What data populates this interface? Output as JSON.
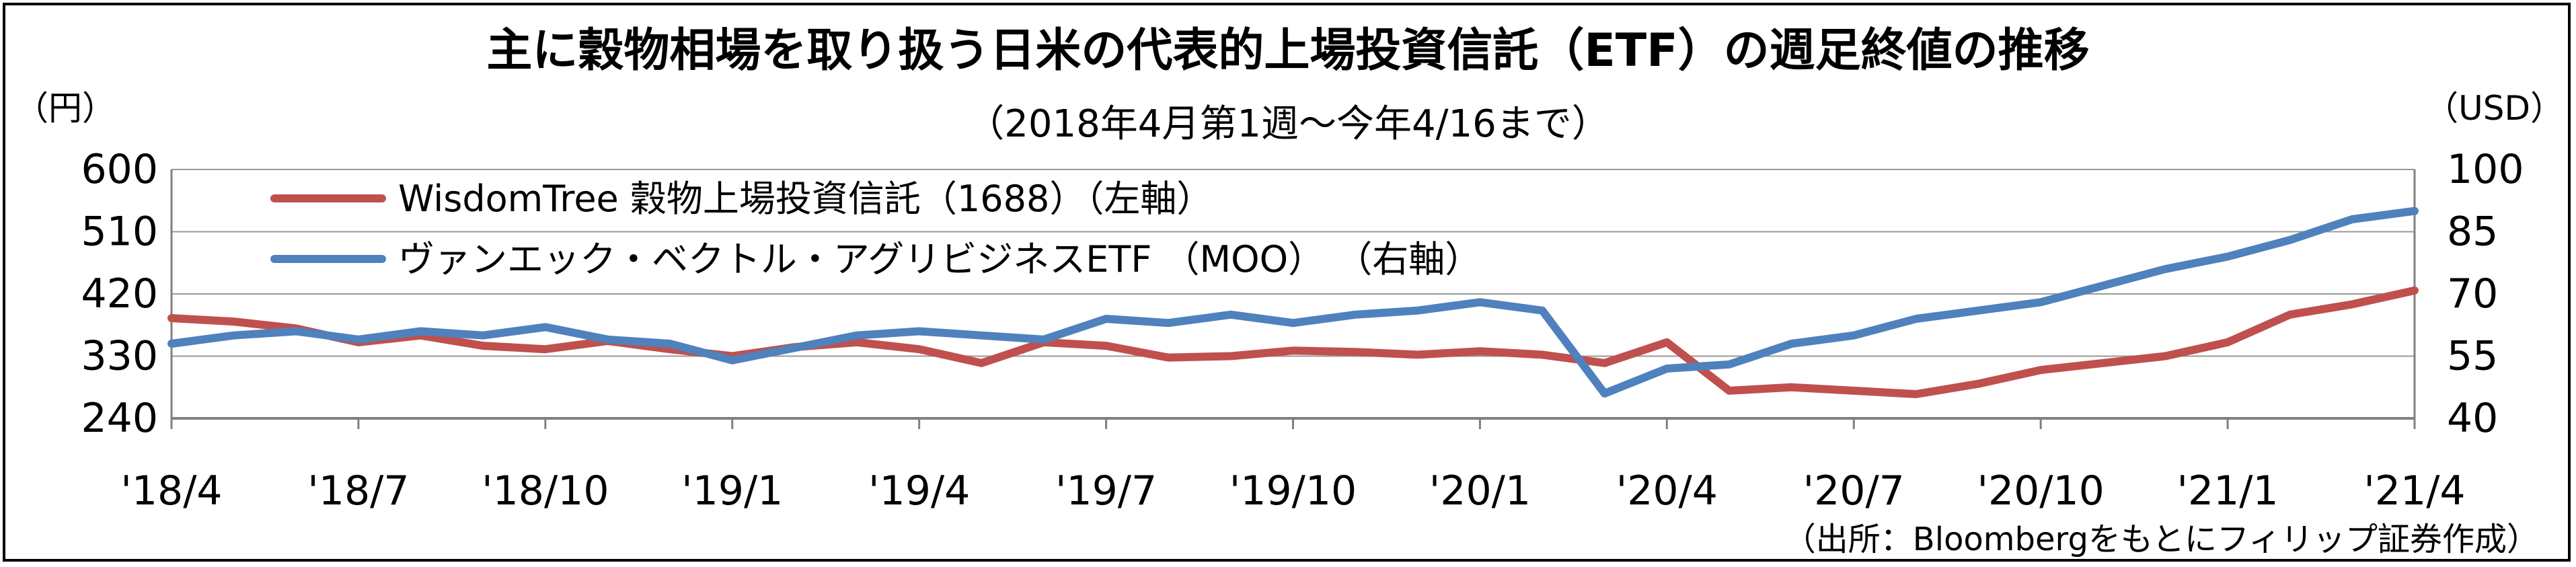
{
  "chart_data": {
    "type": "line",
    "title": "主に穀物相場を取り扱う日米の代表的上場投資信託（ETF）の週足終値の推移",
    "subtitle": "（2018年4月第1週～今年4/16まで）",
    "left_unit": "（円）",
    "right_unit": "（USD）",
    "source": "（出所：Bloombergをもとにフィリップ証券作成）",
    "x_ticks": [
      "'18/4",
      "'18/7",
      "'18/10",
      "'19/1",
      "'19/4",
      "'19/7",
      "'19/10",
      "'20/1",
      "'20/4",
      "'20/7",
      "'20/10",
      "'21/1",
      "'21/4"
    ],
    "y_left": {
      "ticks": [
        "600",
        "510",
        "420",
        "330",
        "240"
      ],
      "ylim": [
        240,
        600
      ]
    },
    "y_right": {
      "ticks": [
        "100",
        "85",
        "70",
        "55",
        "40"
      ],
      "ylim": [
        40,
        100
      ]
    },
    "grid": true,
    "legend_position": "top-left",
    "series": [
      {
        "name": "WisdomTree 穀物上場投資信託（1688）（左軸）",
        "axis": "left",
        "color": "#c0504d",
        "points": [
          [
            "'18/4",
            385
          ],
          [
            "'18/5",
            380
          ],
          [
            "'18/6",
            370
          ],
          [
            "'18/7",
            350
          ],
          [
            "'18/8",
            360
          ],
          [
            "'18/9",
            345
          ],
          [
            "'18/10",
            340
          ],
          [
            "'18/11",
            352
          ],
          [
            "'18/12",
            340
          ],
          [
            "'19/1",
            330
          ],
          [
            "'19/2",
            343
          ],
          [
            "'19/3",
            350
          ],
          [
            "'19/4",
            340
          ],
          [
            "'19/5",
            320
          ],
          [
            "'19/6",
            350
          ],
          [
            "'19/7",
            345
          ],
          [
            "'19/8",
            328
          ],
          [
            "'19/9",
            330
          ],
          [
            "'19/10",
            338
          ],
          [
            "'19/11",
            336
          ],
          [
            "'19/12",
            332
          ],
          [
            "'20/1",
            337
          ],
          [
            "'20/2",
            332
          ],
          [
            "'20/3",
            320
          ],
          [
            "'20/4",
            350
          ],
          [
            "'20/5",
            280
          ],
          [
            "'20/6",
            285
          ],
          [
            "'20/7",
            280
          ],
          [
            "'20/8",
            275
          ],
          [
            "'20/9",
            290
          ],
          [
            "'20/10",
            310
          ],
          [
            "'20/11",
            320
          ],
          [
            "'20/12",
            330
          ],
          [
            "'21/1",
            350
          ],
          [
            "'21/2",
            390
          ],
          [
            "'21/3",
            405
          ],
          [
            "'21/4",
            425
          ]
        ]
      },
      {
        "name": "ヴァンエック・ベクトル・アグリビジネスETF （MOO） （右軸）",
        "axis": "right",
        "color": "#4f81bd",
        "points": [
          [
            "'18/4",
            58
          ],
          [
            "'18/5",
            60
          ],
          [
            "'18/6",
            61
          ],
          [
            "'18/7",
            59
          ],
          [
            "'18/8",
            61
          ],
          [
            "'18/9",
            60
          ],
          [
            "'18/10",
            62
          ],
          [
            "'18/11",
            59
          ],
          [
            "'18/12",
            58
          ],
          [
            "'19/1",
            54
          ],
          [
            "'19/2",
            57
          ],
          [
            "'19/3",
            60
          ],
          [
            "'19/4",
            61
          ],
          [
            "'19/5",
            60
          ],
          [
            "'19/6",
            59
          ],
          [
            "'19/7",
            64
          ],
          [
            "'19/8",
            63
          ],
          [
            "'19/9",
            65
          ],
          [
            "'19/10",
            63
          ],
          [
            "'19/11",
            65
          ],
          [
            "'19/12",
            66
          ],
          [
            "'20/1",
            68
          ],
          [
            "'20/2",
            66
          ],
          [
            "'20/3",
            46
          ],
          [
            "'20/4",
            52
          ],
          [
            "'20/5",
            53
          ],
          [
            "'20/6",
            58
          ],
          [
            "'20/7",
            60
          ],
          [
            "'20/8",
            64
          ],
          [
            "'20/9",
            66
          ],
          [
            "'20/10",
            68
          ],
          [
            "'20/11",
            72
          ],
          [
            "'20/12",
            76
          ],
          [
            "'21/1",
            79
          ],
          [
            "'21/2",
            83
          ],
          [
            "'21/3",
            88
          ],
          [
            "'21/4",
            90
          ]
        ]
      }
    ]
  }
}
